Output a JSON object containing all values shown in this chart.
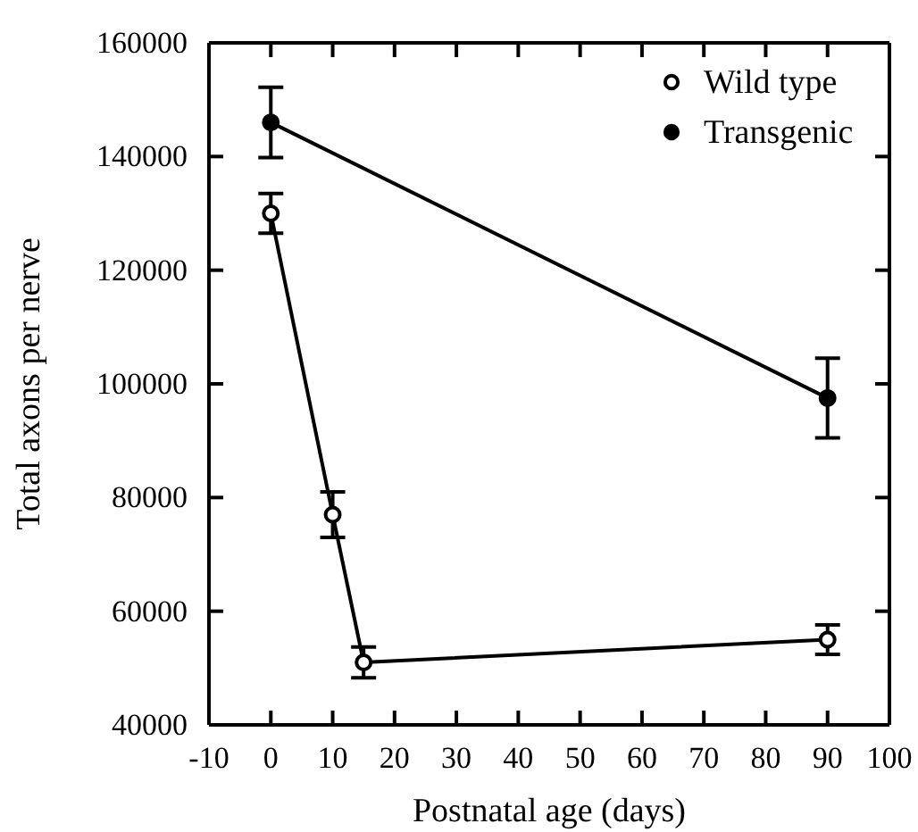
{
  "chart_data": {
    "type": "line",
    "xlabel": "Postnatal age (days)",
    "ylabel": "Total axons per nerve",
    "xlim": [
      -10,
      100
    ],
    "xticks": [
      -10,
      0,
      10,
      20,
      30,
      40,
      50,
      60,
      70,
      80,
      90,
      100
    ],
    "ylim": [
      40000,
      160000
    ],
    "yticks": [
      40000,
      60000,
      80000,
      100000,
      120000,
      140000,
      160000
    ],
    "legend": "top right",
    "grid": false,
    "series": [
      {
        "name": "Wild type",
        "color": "#000000",
        "marker": "circle",
        "x": [
          0,
          10,
          15,
          90
        ],
        "values": [
          130000,
          77000,
          51000,
          55000
        ],
        "errors": [
          3500,
          4000,
          2700,
          2600
        ]
      },
      {
        "name": "Transgenic",
        "color": "#000000",
        "marker": "circle",
        "x": [
          0,
          90
        ],
        "values": [
          146000,
          97500
        ],
        "errors": [
          6200,
          7000
        ]
      }
    ]
  }
}
